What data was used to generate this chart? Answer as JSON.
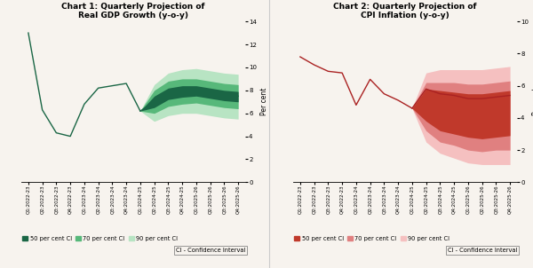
{
  "chart1": {
    "title": "Chart 1: Quarterly Projection of\nReal GDP Growth (y-o-y)",
    "ylabel": "Per cent",
    "ylim": [
      0,
      14
    ],
    "yticks": [
      0,
      2,
      4,
      6,
      8,
      10,
      12,
      14
    ],
    "x_labels": [
      "Q1:2022-23",
      "Q2:2022-23",
      "Q3:2022-23",
      "Q4:2022-23",
      "Q1:2023-24",
      "Q2:2023-24",
      "Q3:2023-24",
      "Q4:2023-24",
      "Q1:2024-25",
      "Q2:2024-25",
      "Q3:2024-25",
      "Q4:2024-25",
      "Q1:2025-26",
      "Q2:2025-26",
      "Q3:2025-26",
      "Q4:2025-26"
    ],
    "historical_x": [
      0,
      1,
      2,
      3,
      4,
      5,
      6,
      7,
      8
    ],
    "historical_y": [
      13.0,
      6.3,
      4.3,
      4.0,
      6.8,
      8.2,
      8.4,
      8.6,
      6.2
    ],
    "proj_x": [
      8,
      9,
      10,
      11,
      12,
      13,
      14,
      15
    ],
    "proj_center": [
      6.2,
      7.0,
      7.8,
      8.0,
      8.0,
      7.8,
      7.6,
      7.5
    ],
    "ci_50_upper": [
      6.2,
      7.5,
      8.2,
      8.4,
      8.4,
      8.2,
      8.0,
      7.9
    ],
    "ci_50_lower": [
      6.2,
      6.5,
      7.2,
      7.4,
      7.5,
      7.3,
      7.1,
      7.0
    ],
    "ci_70_upper": [
      6.2,
      8.0,
      8.8,
      9.0,
      9.0,
      8.8,
      8.6,
      8.5
    ],
    "ci_70_lower": [
      6.2,
      6.0,
      6.6,
      6.8,
      6.9,
      6.7,
      6.5,
      6.4
    ],
    "ci_90_upper": [
      6.2,
      8.5,
      9.5,
      9.8,
      9.9,
      9.7,
      9.5,
      9.4
    ],
    "ci_90_lower": [
      6.2,
      5.3,
      5.8,
      6.0,
      6.0,
      5.8,
      5.6,
      5.5
    ],
    "color_line": "#1a6645",
    "color_50": "#1a6645",
    "color_70": "#57b87a",
    "color_90": "#b8e4c3"
  },
  "chart2": {
    "title": "Chart 2: Quarterly Projection of\nCPI Inflation (y-o-y)",
    "ylabel": "Per cent",
    "ylim": [
      0,
      10
    ],
    "yticks": [
      0,
      2,
      4,
      6,
      8,
      10
    ],
    "x_labels": [
      "Q1:2022-23",
      "Q2:2022-23",
      "Q3:2022-23",
      "Q4:2022-23",
      "Q1:2023-24",
      "Q2:2023-24",
      "Q3:2023-24",
      "Q4:2023-24",
      "Q1:2024-25",
      "Q2:2024-25",
      "Q3:2024-25",
      "Q4:2024-25",
      "Q1:2025-26",
      "Q2:2025-26",
      "Q3:2025-26",
      "Q4:2025-26"
    ],
    "historical_x": [
      0,
      1,
      2,
      3,
      4,
      5,
      6,
      7,
      8
    ],
    "historical_y": [
      7.8,
      7.3,
      6.9,
      6.8,
      4.8,
      6.4,
      5.5,
      5.1,
      4.6
    ],
    "proj_x": [
      8,
      9,
      10,
      11,
      12,
      13,
      14,
      15
    ],
    "proj_center": [
      4.6,
      5.8,
      5.5,
      5.4,
      5.2,
      5.2,
      5.3,
      5.4
    ],
    "ci_50_upper": [
      4.6,
      5.8,
      5.7,
      5.6,
      5.5,
      5.5,
      5.6,
      5.7
    ],
    "ci_50_lower": [
      4.6,
      3.8,
      3.2,
      3.0,
      2.8,
      2.7,
      2.8,
      2.9
    ],
    "ci_70_upper": [
      4.6,
      6.2,
      6.2,
      6.2,
      6.1,
      6.1,
      6.2,
      6.3
    ],
    "ci_70_lower": [
      4.6,
      3.2,
      2.5,
      2.3,
      2.0,
      1.9,
      2.0,
      2.0
    ],
    "ci_90_upper": [
      4.6,
      6.8,
      7.0,
      7.0,
      7.0,
      7.0,
      7.1,
      7.2
    ],
    "ci_90_lower": [
      4.6,
      2.5,
      1.8,
      1.5,
      1.2,
      1.1,
      1.1,
      1.1
    ],
    "color_line": "#aa2222",
    "color_50": "#c0392b",
    "color_70": "#e08080",
    "color_90": "#f5c0c0"
  },
  "background_color": "#f7f3ee",
  "legend_50": "50 per cent CI",
  "legend_70": "70 per cent CI",
  "legend_90": "90 per cent CI",
  "ci_note": "CI - Confidence Interval"
}
